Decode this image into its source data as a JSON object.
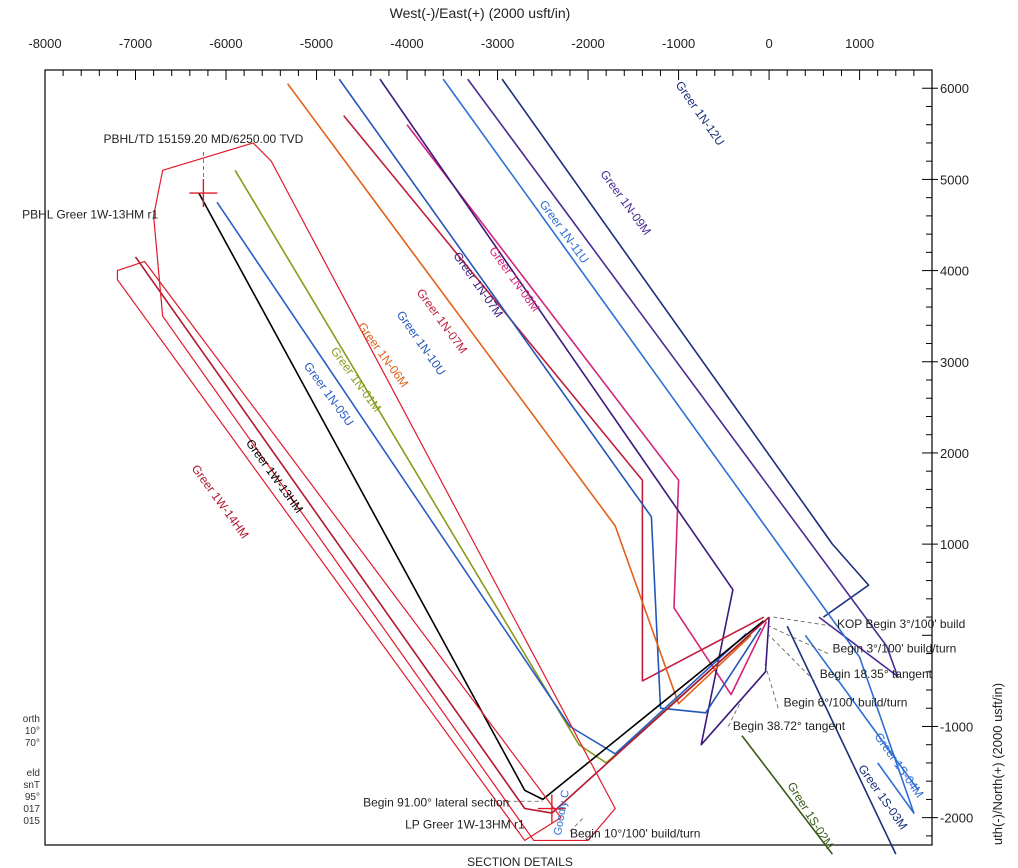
{
  "chart_data": {
    "type": "line",
    "x_axis_title": "West(-)/East(+) (2000 usft/in)",
    "y_axis_title": "uth(-)/North(+) (2000 usft/in)",
    "xlim": [
      -8000,
      1800
    ],
    "ylim": [
      -2300,
      6200
    ],
    "x_ticks": [
      -8000,
      -7000,
      -6000,
      -5000,
      -4000,
      -3000,
      -2000,
      -1000,
      0,
      1000
    ],
    "x_tick_labels": [
      "-8000",
      "-7000",
      "-6000",
      "-5000",
      "-4000",
      "-3000",
      "-2000",
      "-1000",
      "0",
      "1000"
    ],
    "y_ticks": [
      6000,
      5000,
      4000,
      3000,
      2000,
      1000,
      -1000,
      -2000
    ],
    "y_tick_labels": [
      "6000",
      "5000",
      "4000",
      "3000",
      "2000",
      "1000",
      "-1000",
      "-2000"
    ],
    "left_legend_fragments": [
      "orth",
      "10°",
      "70°",
      "eld",
      "snT",
      "95°",
      "017",
      "015"
    ],
    "bottom_label": "SECTION DETAILS",
    "bottom_partial_label": "Goodly C",
    "series": [
      {
        "name": "Greer 1N-12U",
        "color": "#1a2f7a",
        "label_at": [
          -800,
          5700
        ],
        "label_rot": 55,
        "points": [
          [
            -2950,
            6100
          ],
          [
            700,
            1000
          ],
          [
            1100,
            550
          ],
          [
            600,
            200
          ]
        ]
      },
      {
        "name": "Greer 1N-09M",
        "color": "#4b2a96",
        "label_at": [
          -1620,
          4720
        ],
        "label_rot": 54,
        "points": [
          [
            -3330,
            6100
          ],
          [
            1300,
            -120
          ],
          [
            1420,
            -450
          ],
          [
            550,
            200
          ]
        ]
      },
      {
        "name": "Greer 1N-11U",
        "color": "#2f6fd4",
        "label_at": [
          -2300,
          4400
        ],
        "label_rot": 54,
        "points": [
          [
            -3600,
            6100
          ],
          [
            1000,
            -240
          ],
          [
            1600,
            -1950
          ],
          [
            1200,
            -1400
          ]
        ]
      },
      {
        "name": "Greer 1N-08M",
        "color": "#d4237a",
        "label_at": [
          -2850,
          3880
        ],
        "label_rot": 54,
        "points": [
          [
            -4000,
            5600
          ],
          [
            -1000,
            1700
          ],
          [
            -1050,
            300
          ],
          [
            -420,
            -650
          ],
          [
            -30,
            150
          ]
        ]
      },
      {
        "name": "Greer 1N-07M",
        "color": "#3b1a7c",
        "label_at": [
          -3250,
          3820
        ],
        "label_rot": 55,
        "points": [
          [
            -4300,
            6100
          ],
          [
            -400,
            500
          ],
          [
            -750,
            -1200
          ],
          [
            -40,
            -400
          ],
          [
            0,
            200
          ]
        ]
      },
      {
        "name": "Greer 1N-07M",
        "color": "#c01e3a",
        "label_at": [
          -3650,
          3420
        ],
        "label_rot": 54,
        "points": [
          [
            -4700,
            5700
          ],
          [
            -1400,
            1700
          ],
          [
            -1400,
            -500
          ],
          [
            -60,
            200
          ]
        ]
      },
      {
        "name": "Greer 1N-10U",
        "color": "#2456b8",
        "label_at": [
          -3880,
          3180
        ],
        "label_rot": 55,
        "points": [
          [
            -4750,
            6100
          ],
          [
            -1300,
            1300
          ],
          [
            -1200,
            -800
          ],
          [
            -700,
            -850
          ],
          [
            -90,
            80
          ]
        ]
      },
      {
        "name": "Greer 1N-06M",
        "color": "#e0621a",
        "label_at": [
          -4300,
          3050
        ],
        "label_rot": 54,
        "points": [
          [
            -5320,
            6050
          ],
          [
            -1700,
            1200
          ],
          [
            -1000,
            -750
          ],
          [
            -200,
            0
          ]
        ]
      },
      {
        "name": "Greer 1N-01M",
        "color": "#8a9a1c",
        "label_at": [
          -4600,
          2780
        ],
        "label_rot": 54,
        "points": [
          [
            -5900,
            5100
          ],
          [
            -2100,
            -1200
          ],
          [
            -1800,
            -1400
          ],
          [
            -220,
            0
          ]
        ]
      },
      {
        "name": "Greer 1N-05U",
        "color": "#2a5cc6",
        "label_at": [
          -4900,
          2620
        ],
        "label_rot": 54,
        "points": [
          [
            -6100,
            4750
          ],
          [
            -2200,
            -1000
          ],
          [
            -1700,
            -1300
          ],
          [
            -250,
            20
          ]
        ]
      },
      {
        "name": "Greer 1W-13HM",
        "color": "#000000",
        "label_at": [
          -5500,
          1720
        ],
        "label_rot": 54,
        "points": [
          [
            -6300,
            4850
          ],
          [
            -2700,
            -1700
          ],
          [
            -2500,
            -1800
          ],
          [
            -60,
            160
          ]
        ]
      },
      {
        "name": "Greer 1W-14HM",
        "color": "#b0182e",
        "label_at": [
          -6100,
          1440
        ],
        "label_rot": 54,
        "points": [
          [
            -7000,
            4150
          ],
          [
            -2700,
            -1900
          ],
          [
            -2400,
            -1950
          ],
          [
            0,
            200
          ]
        ]
      },
      {
        "name": "Greer 1S-03M",
        "color": "#1a2f7a",
        "label_at": [
          1220,
          -1800
        ],
        "label_rot": 55,
        "points": [
          [
            200,
            100
          ],
          [
            1400,
            -2400
          ]
        ]
      },
      {
        "name": "Greer 1S-04M",
        "color": "#2f6fd4",
        "label_at": [
          1400,
          -1450
        ],
        "label_rot": 55,
        "points": [
          [
            400,
            0
          ],
          [
            1650,
            -1700
          ]
        ]
      },
      {
        "name": "Greer 1S-02M",
        "color": "#3a5a1a",
        "label_at": [
          420,
          -2000
        ],
        "label_rot": 58,
        "points": [
          [
            -300,
            -1100
          ],
          [
            700,
            -2400
          ]
        ]
      }
    ],
    "annotations": [
      {
        "text": "PBHL/TD 15159.20 MD/6250.00 TVD",
        "at": [
          -6250,
          5400
        ],
        "anchor": "middle"
      },
      {
        "text": "PBHL Greer 1W-13HM r1",
        "at": [
          -6750,
          4570
        ],
        "anchor": "end"
      },
      {
        "text": "KOP Begin 3°/100' build",
        "at": [
          750,
          80
        ],
        "anchor": "start"
      },
      {
        "text": "Begin 3°/100' build/turn",
        "at": [
          700,
          -190
        ],
        "anchor": "start"
      },
      {
        "text": "Begin 18.35° tangent",
        "at": [
          560,
          -470
        ],
        "anchor": "start"
      },
      {
        "text": "Begin 6°/100' build/turn",
        "at": [
          160,
          -780
        ],
        "anchor": "start"
      },
      {
        "text": "Begin 38.72° tangent",
        "at": [
          -400,
          -1040
        ],
        "anchor": "start"
      },
      {
        "text": "Begin 91.00° lateral section",
        "at": [
          -2870,
          -1880
        ],
        "anchor": "end"
      },
      {
        "text": "LP Greer 1W-13HM r1",
        "at": [
          -2700,
          -2120
        ],
        "anchor": "end"
      },
      {
        "text": "Begin 10°/100' build/turn",
        "at": [
          -2200,
          -2220
        ],
        "anchor": "start"
      }
    ]
  }
}
